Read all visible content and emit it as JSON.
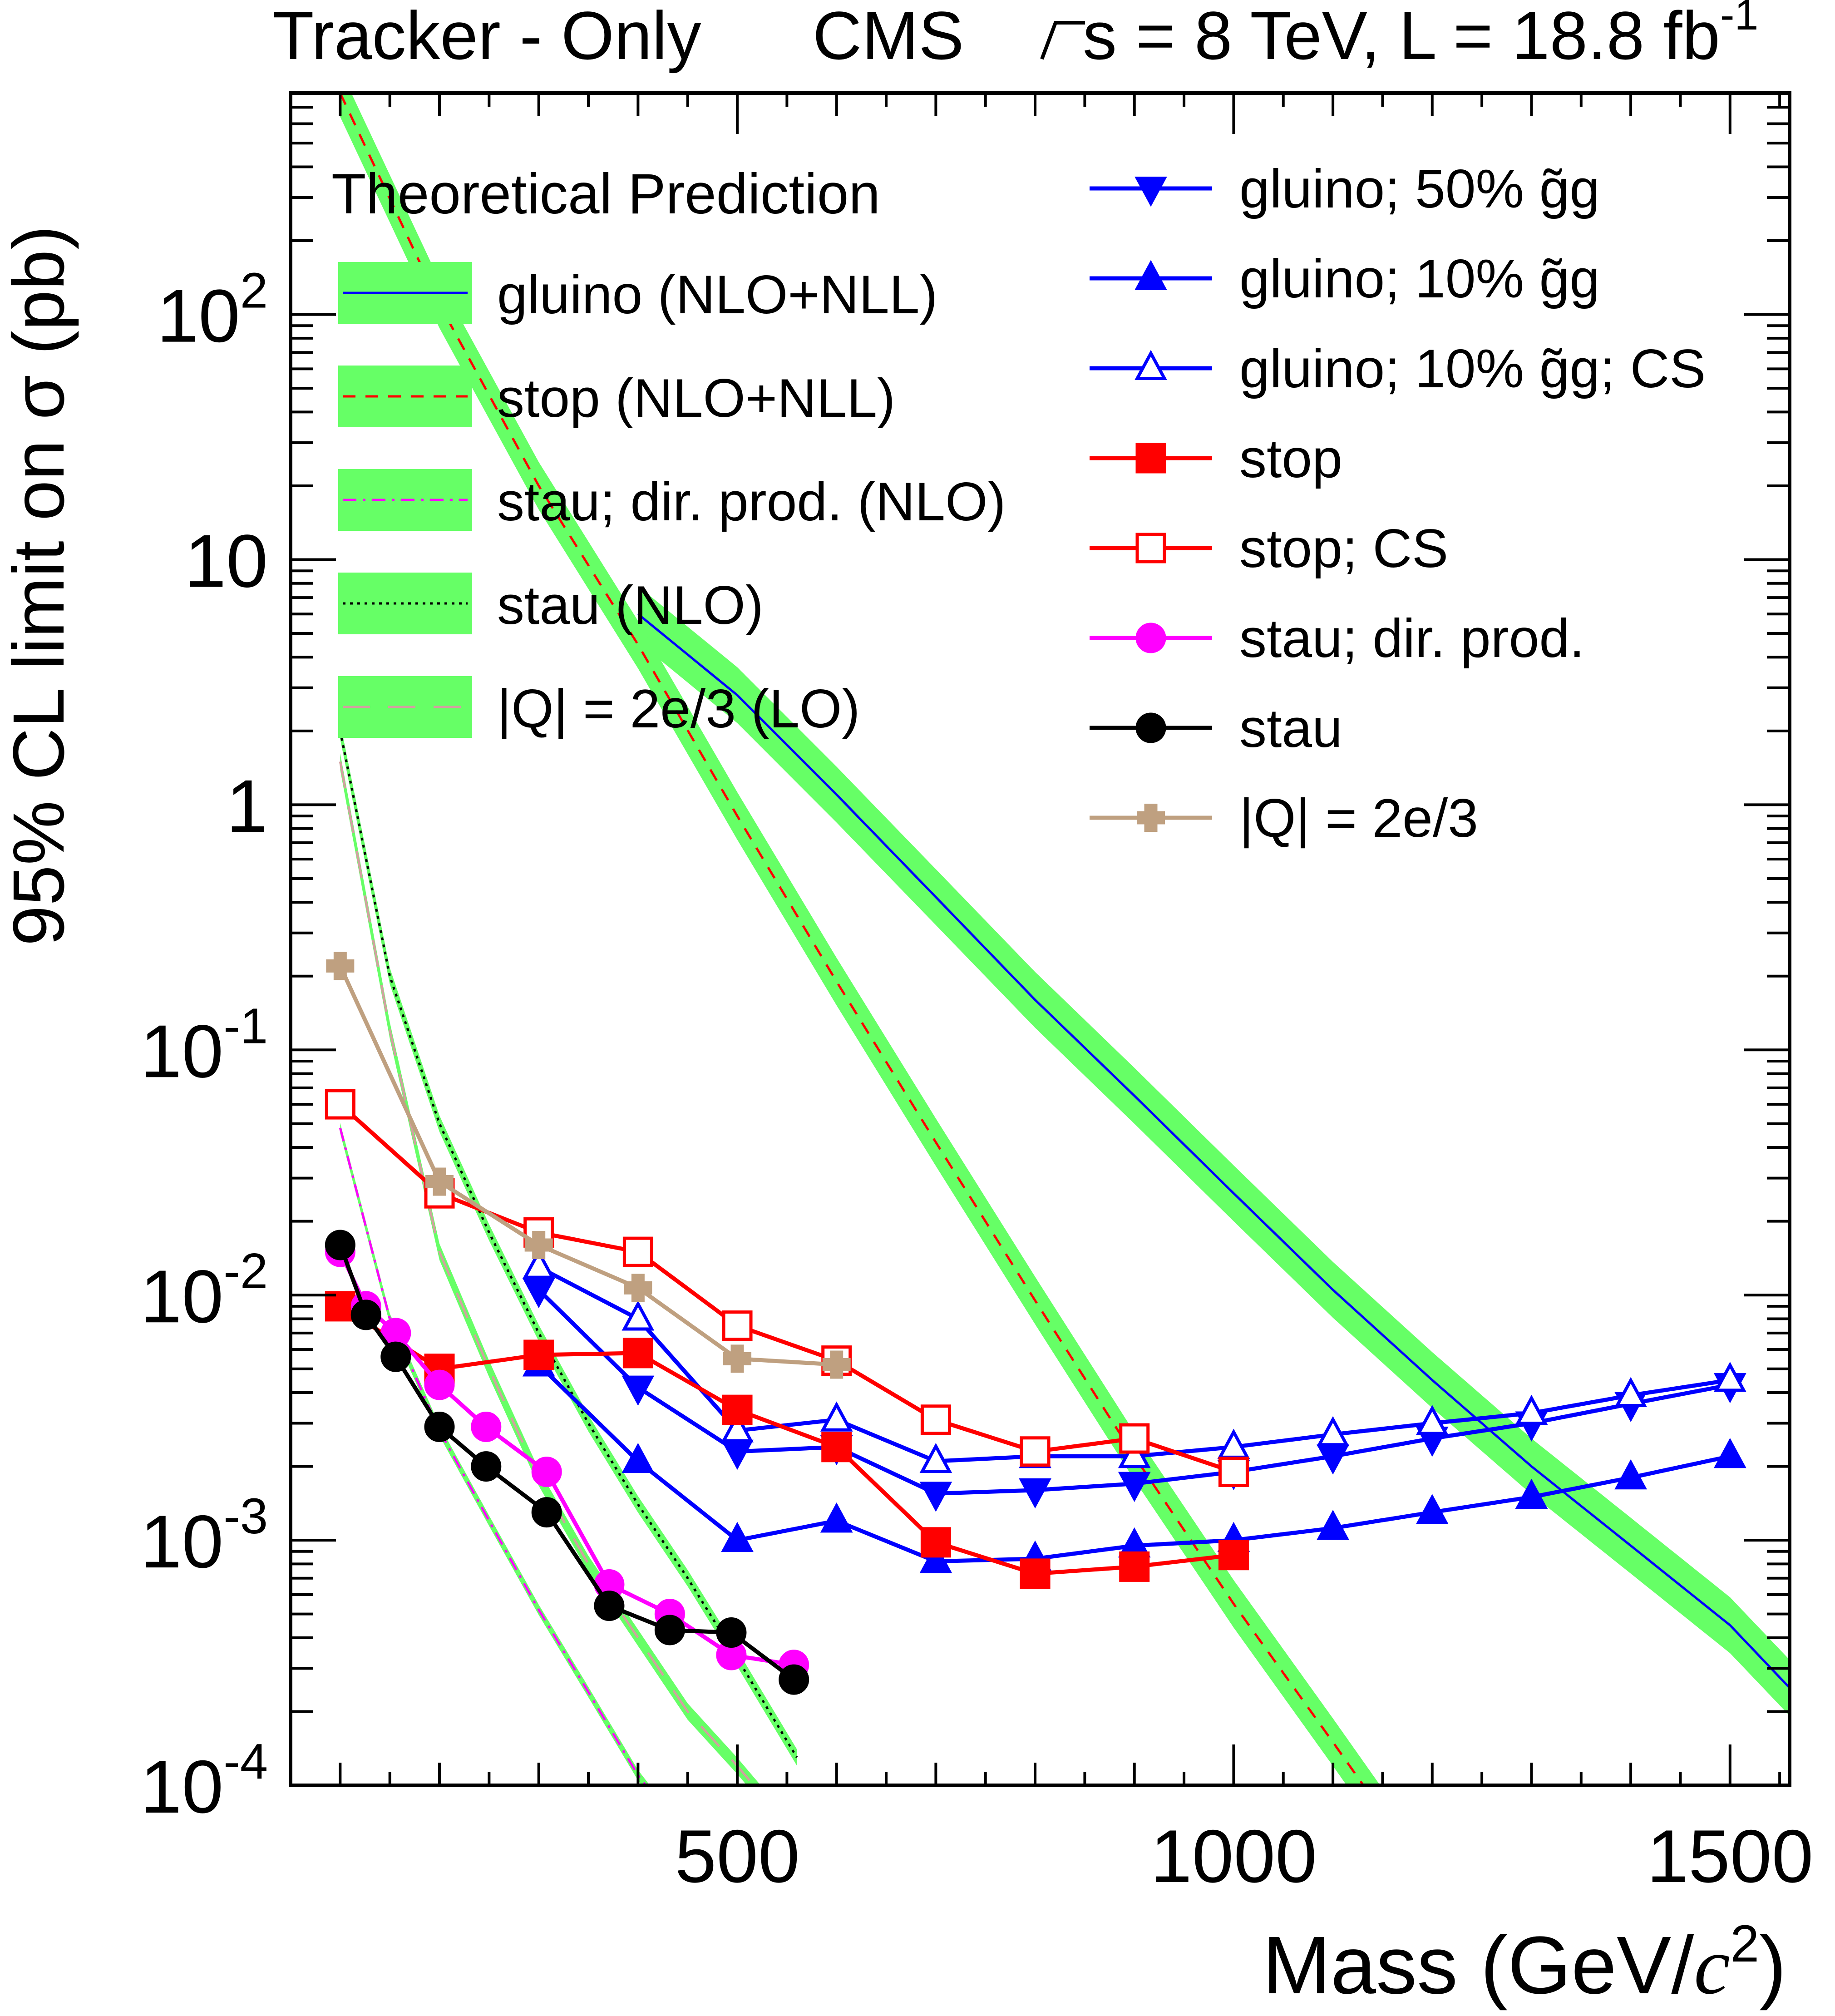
{
  "header": {
    "left": "Tracker - Only",
    "experiment": "CMS",
    "energy_parts": [
      "s = 8 TeV, L = 18.8 fb",
      "-1"
    ]
  },
  "chart_data": {
    "type": "line",
    "xlabel_parts": [
      "Mass (GeV/",
      "c",
      "2",
      ")"
    ],
    "ylabel": "95% CL limit on σ (pb)",
    "xlim": [
      50,
      1560
    ],
    "ylim": [
      0.0001,
      800
    ],
    "yscale": "log",
    "x_ticks": [
      500,
      1000,
      1500
    ],
    "y_ticks": [
      {
        "v": 100,
        "base": "10",
        "exp": "2"
      },
      {
        "v": 10,
        "base": "10",
        "exp": ""
      },
      {
        "v": 1,
        "base": "1",
        "exp": ""
      },
      {
        "v": 0.1,
        "base": "10",
        "exp": "-1"
      },
      {
        "v": 0.01,
        "base": "10",
        "exp": "-2"
      },
      {
        "v": 0.001,
        "base": "10",
        "exp": "-3"
      },
      {
        "v": 0.0001,
        "base": "10",
        "exp": "-4"
      }
    ],
    "theory_legend_title": "Theoretical Prediction",
    "band_color": "#66ff66",
    "theory": [
      {
        "name": "gluino (NLO+NLL)",
        "color": "#0000ff",
        "dash": "solid",
        "x": [
          400,
          500,
          600,
          700,
          800,
          900,
          1000,
          1100,
          1200,
          1300,
          1400,
          1500,
          1560
        ],
        "y": [
          6.0,
          2.8,
          1.1,
          0.42,
          0.16,
          0.065,
          0.026,
          0.0105,
          0.0045,
          0.002,
          0.00095,
          0.00045,
          0.00025
        ],
        "rel_band": 0.3
      },
      {
        "name": "stop (NLO+NLL)",
        "color": "#ff0000",
        "dash": "dash",
        "x": [
          100,
          200,
          300,
          400,
          500,
          600,
          700,
          800,
          900,
          1000,
          1100,
          1200
        ],
        "y": [
          800,
          110,
          20,
          4.5,
          0.9,
          0.19,
          0.042,
          0.0095,
          0.0022,
          0.00055,
          0.00015,
          4e-05
        ],
        "rel_band": 0.25
      },
      {
        "name": "stau; dir. prod. (NLO)",
        "color": "#ff00ff",
        "dash": "dashdot",
        "x": [
          100,
          150,
          200,
          250,
          300,
          350,
          400,
          450,
          500
        ],
        "y": [
          0.048,
          0.008,
          0.0028,
          0.0012,
          0.00052,
          0.00024,
          0.00011,
          6e-05,
          3e-05
        ],
        "rel_band": 0.05
      },
      {
        "name": "stau (NLO)",
        "color": "#000000",
        "dash": "dot",
        "x": [
          100,
          150,
          200,
          250,
          300,
          350,
          400,
          450,
          500,
          560
        ],
        "y": [
          2.0,
          0.2,
          0.05,
          0.018,
          0.007,
          0.003,
          0.0014,
          0.0007,
          0.00033,
          0.00013
        ],
        "rel_band": 0.08
      },
      {
        "name": "|Q| = 2e/3 (LO)",
        "color": "#d2a0a0",
        "dash": "longdash",
        "x": [
          100,
          150,
          200,
          250,
          300,
          350,
          400,
          450,
          500,
          600
        ],
        "y": [
          1.5,
          0.12,
          0.015,
          0.005,
          0.0018,
          0.0008,
          0.0004,
          0.0002,
          0.00012,
          4e-05
        ],
        "rel_band": 0.08
      }
    ],
    "series": [
      {
        "name": "gluino; 50% ",
        "suffix": "; CS",
        "gg": true,
        "show_suffix": false,
        "color": "#0000ff",
        "marker": "triangle-down",
        "filled": true,
        "x": [
          300,
          400,
          500,
          600,
          700,
          800,
          900,
          1000,
          1100,
          1200,
          1300,
          1400,
          1500
        ],
        "y": [
          0.0105,
          0.0042,
          0.0023,
          0.0024,
          0.00155,
          0.0016,
          0.0017,
          0.0019,
          0.0022,
          0.0026,
          0.003,
          0.0036,
          0.0043
        ]
      },
      {
        "name": "gluino; 10% ",
        "gg": true,
        "show_suffix": false,
        "color": "#0000ff",
        "marker": "triangle-up",
        "filled": true,
        "x": [
          300,
          400,
          500,
          600,
          700,
          800,
          900,
          1000,
          1100,
          1200,
          1300,
          1400,
          1500
        ],
        "y": [
          0.0052,
          0.0021,
          0.001,
          0.0012,
          0.00082,
          0.00084,
          0.00095,
          0.001,
          0.00112,
          0.0013,
          0.0015,
          0.0018,
          0.0022
        ]
      },
      {
        "name": "gluino; 10% ",
        "gg": true,
        "show_suffix": true,
        "color": "#0000ff",
        "marker": "triangle-up",
        "filled": false,
        "x": [
          300,
          400,
          500,
          600,
          700,
          800,
          900,
          1000,
          1100,
          1200,
          1300,
          1400,
          1500
        ],
        "y": [
          0.013,
          0.008,
          0.0028,
          0.0031,
          0.0021,
          0.0022,
          0.0022,
          0.0024,
          0.0027,
          0.003,
          0.0033,
          0.0039,
          0.0045
        ]
      },
      {
        "name": "stop",
        "color": "#ff0000",
        "marker": "square",
        "filled": true,
        "x": [
          100,
          200,
          300,
          400,
          500,
          600,
          700,
          800,
          900,
          1000
        ],
        "y": [
          0.009,
          0.005,
          0.0057,
          0.0058,
          0.0034,
          0.0024,
          0.00098,
          0.00073,
          0.00078,
          0.00087
        ]
      },
      {
        "name": "stop; CS",
        "color": "#ff0000",
        "marker": "square",
        "filled": false,
        "x": [
          100,
          200,
          300,
          400,
          500,
          600,
          700,
          800,
          900,
          1000
        ],
        "y": [
          0.06,
          0.026,
          0.018,
          0.015,
          0.0075,
          0.0054,
          0.0031,
          0.0023,
          0.0026,
          0.0019
        ]
      },
      {
        "name": "stau; dir. prod.",
        "color": "#ff00ff",
        "marker": "circle",
        "filled": true,
        "x": [
          100,
          126,
          156,
          200,
          247,
          308,
          371,
          432,
          494,
          557
        ],
        "y": [
          0.015,
          0.009,
          0.007,
          0.0043,
          0.0029,
          0.0019,
          0.00066,
          0.0005,
          0.00034,
          0.00031
        ]
      },
      {
        "name": "stau",
        "color": "#000000",
        "marker": "circle",
        "filled": true,
        "x": [
          100,
          126,
          156,
          200,
          247,
          308,
          371,
          432,
          494,
          557
        ],
        "y": [
          0.016,
          0.0083,
          0.0056,
          0.0029,
          0.002,
          0.0013,
          0.00054,
          0.00043,
          0.00042,
          0.00027
        ]
      },
      {
        "name": "|Q| = 2e/3",
        "color": "#bfa080",
        "marker": "cross",
        "filled": true,
        "x": [
          100,
          200,
          300,
          400,
          500,
          600
        ],
        "y": [
          0.22,
          0.029,
          0.016,
          0.0107,
          0.0055,
          0.0052
        ]
      }
    ]
  }
}
